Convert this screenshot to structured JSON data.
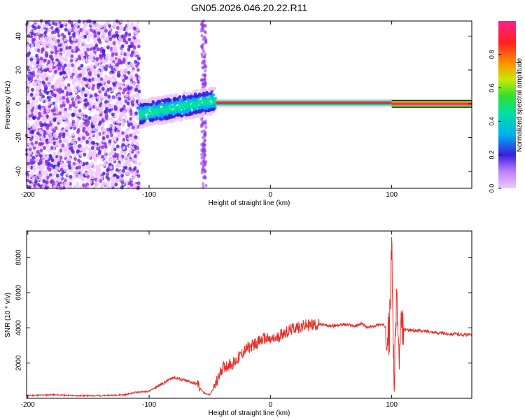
{
  "title": "GN05.2026.046.20.22.R11",
  "colors": {
    "series": "#e8302a",
    "palette": [
      "#f0c8ff",
      "#8a2be2",
      "#3a1fe0",
      "#00b0f0",
      "#00e0a0",
      "#30e030",
      "#c8e800",
      "#ff9000",
      "#ff2020",
      "#ff2090"
    ]
  },
  "chart_data": [
    {
      "type": "heatmap",
      "title": "GN05.2026.046.20.22.R11",
      "xlabel": "Height of straight line (km)",
      "ylabel": "Frequency (Hz)",
      "xlim": [
        -201,
        166
      ],
      "ylim": [
        -50,
        49
      ],
      "xticks": [
        -200,
        -100,
        0,
        100
      ],
      "yticks": [
        -40,
        -20,
        0,
        20,
        40
      ],
      "colorbar": {
        "label": "Normalized spectral amplitude",
        "range": [
          0,
          1
        ],
        "ticks": [
          0.0,
          0.2,
          0.4,
          0.6,
          0.8
        ],
        "tick_labels": [
          "0.0",
          "0.2",
          "0.4",
          "0.6",
          "0.8"
        ]
      },
      "regions": [
        {
          "x": [
            -201,
            -108
          ],
          "description_level": 0.1,
          "freq_spread": 50
        },
        {
          "x": [
            -108,
            -45
          ],
          "center_freq_start": -6,
          "center_freq_end": 2,
          "level": 0.4
        },
        {
          "x": [
            -45,
            100
          ],
          "center_freq": 0.5,
          "level": 0.95
        },
        {
          "x": [
            100,
            166
          ],
          "center_freq": 0,
          "level": 1.0
        }
      ]
    },
    {
      "type": "line",
      "xlabel": "Height of straight line (km)",
      "ylabel": "SNR (10 * v/v)",
      "xlim": [
        -201,
        166
      ],
      "ylim": [
        0,
        9500
      ],
      "xticks": [
        -200,
        -100,
        0,
        100
      ],
      "yticks": [
        2000,
        4000,
        6000,
        8000
      ],
      "series": [
        {
          "x": [
            -201,
            -180,
            -160,
            -140,
            -120,
            -110,
            -100,
            -90,
            -80,
            -75,
            -70,
            -65,
            -60,
            -55,
            -50,
            -45,
            -40,
            -35,
            -30,
            -25,
            -20,
            -15,
            -10,
            -5,
            0,
            5,
            10,
            15,
            20,
            30,
            40,
            50,
            60,
            70,
            75,
            80,
            85,
            90,
            95,
            98,
            100,
            102,
            104,
            106,
            108,
            110,
            120,
            130,
            140,
            150,
            166
          ],
          "values": [
            150,
            200,
            150,
            150,
            200,
            350,
            400,
            800,
            1200,
            1100,
            1000,
            900,
            800,
            300,
            200,
            800,
            1700,
            1900,
            2000,
            2400,
            2800,
            3000,
            3200,
            3400,
            3300,
            3400,
            3700,
            3800,
            4000,
            4150,
            4200,
            4100,
            4200,
            4100,
            4250,
            4000,
            4100,
            4200,
            4100,
            3500,
            8800,
            300,
            6200,
            2000,
            4000,
            3900,
            3850,
            3800,
            3700,
            3650,
            3600
          ]
        }
      ]
    }
  ]
}
